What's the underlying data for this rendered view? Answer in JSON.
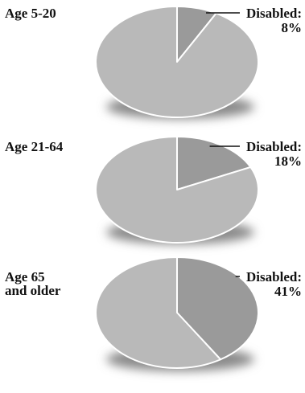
{
  "chart_data": [
    {
      "type": "pie",
      "group_label": [
        "Age 5-20"
      ],
      "slices": [
        {
          "label": "Disabled:",
          "value": 8,
          "value_label": "8%"
        },
        {
          "label": "",
          "value": 92
        }
      ]
    },
    {
      "type": "pie",
      "group_label": [
        "Age 21-64"
      ],
      "slices": [
        {
          "label": "Disabled:",
          "value": 18,
          "value_label": "18%"
        },
        {
          "label": "",
          "value": 82
        }
      ]
    },
    {
      "type": "pie",
      "group_label": [
        "Age 65",
        "and older"
      ],
      "slices": [
        {
          "label": "Disabled:",
          "value": 41,
          "value_label": "41%"
        },
        {
          "label": "",
          "value": 59
        }
      ]
    }
  ],
  "colors": {
    "highlight_slice": "#9a9a9a",
    "other_slice": "#b9b9b9",
    "shadow": "#8a8a8a",
    "edge": "#ffffff",
    "leader": "#111111"
  }
}
